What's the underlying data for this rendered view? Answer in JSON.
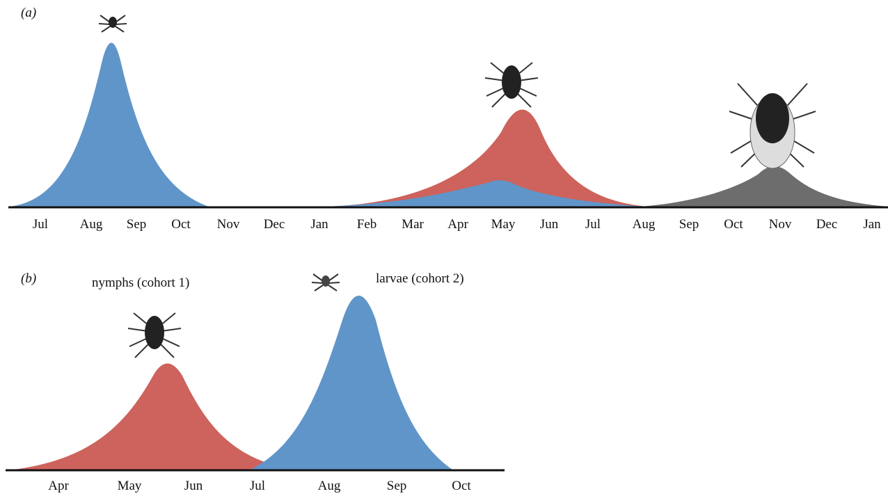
{
  "panel_a": {
    "label": "(a)",
    "months": [
      "Jul",
      "Aug",
      "Sep",
      "Oct",
      "Nov",
      "Dec",
      "Jan",
      "Feb",
      "Mar",
      "Apr",
      "May",
      "Jun",
      "Jul",
      "Aug",
      "Sep",
      "Oct",
      "Nov",
      "Dec",
      "Jan"
    ]
  },
  "panel_b": {
    "label": "(b)",
    "nymphs_label": "nymphs (cohort 1)",
    "larvae_label": "larvae (cohort 2)",
    "months": [
      "Apr",
      "May",
      "Jun",
      "Jul",
      "Aug",
      "Sep",
      "Oct"
    ]
  }
}
